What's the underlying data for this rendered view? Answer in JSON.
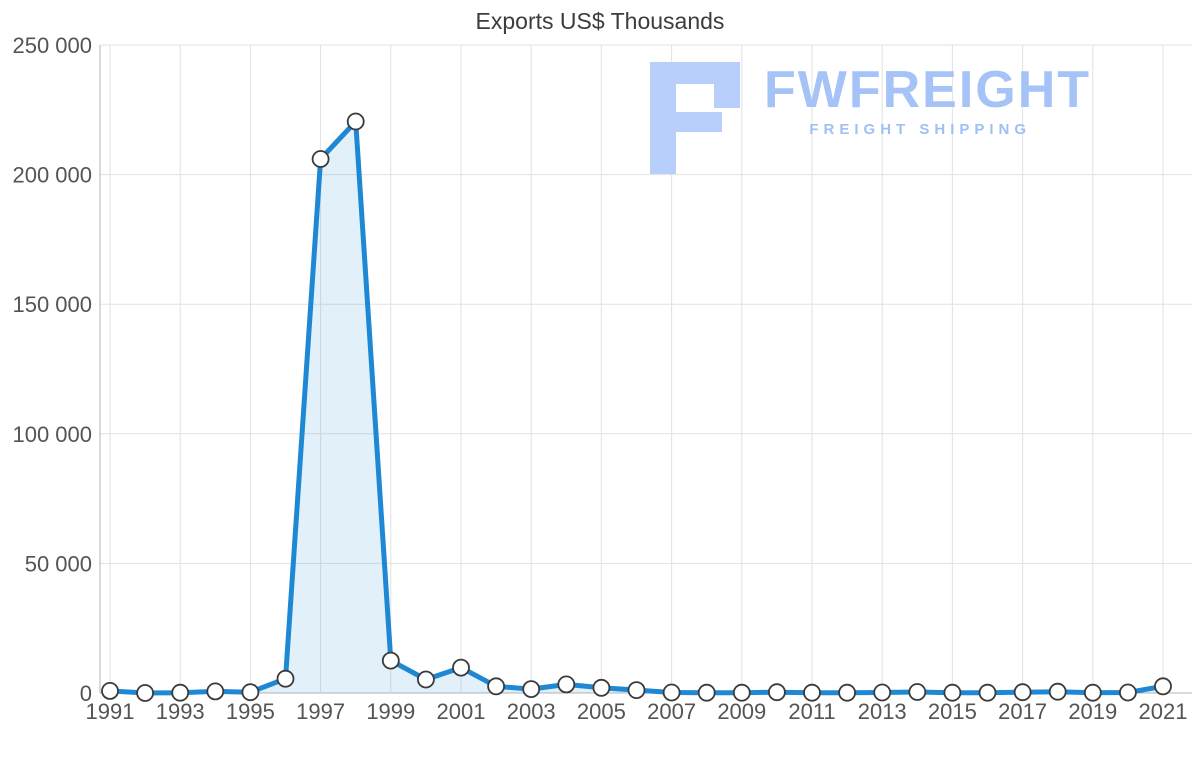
{
  "title": "Exports US$ Thousands",
  "watermark": {
    "brand": "FWFREIGHT",
    "tagline": "FREIGHT SHIPPING",
    "color": "#a6c3f7"
  },
  "chart_data": {
    "type": "area",
    "title": "Exports US$ Thousands",
    "x": [
      1991,
      1992,
      1993,
      1994,
      1995,
      1996,
      1997,
      1998,
      1999,
      2000,
      2001,
      2002,
      2003,
      2004,
      2005,
      2006,
      2007,
      2008,
      2009,
      2010,
      2011,
      2012,
      2013,
      2014,
      2015,
      2016,
      2017,
      2018,
      2019,
      2020,
      2021
    ],
    "values": [
      800,
      0,
      100,
      600,
      300,
      5500,
      206000,
      220500,
      12500,
      5200,
      9800,
      2600,
      1500,
      3300,
      2000,
      1100,
      200,
      100,
      100,
      300,
      100,
      100,
      200,
      400,
      100,
      100,
      300,
      500,
      100,
      200,
      2600
    ],
    "ylim": [
      0,
      250000
    ],
    "yticks": [
      0,
      50000,
      100000,
      150000,
      200000,
      250000
    ],
    "ytick_labels": [
      "0",
      "50 000",
      "100 000",
      "150 000",
      "200 000",
      "250 000"
    ],
    "xtick_labels": [
      "1991",
      "1993",
      "1995",
      "1997",
      "1999",
      "2001",
      "2003",
      "2005",
      "2007",
      "2009",
      "2011",
      "2013",
      "2015",
      "2017",
      "2019",
      "2021"
    ],
    "grid": true,
    "legend": "none",
    "line_color": "#1e88d4",
    "fill_color": "rgba(30,136,212,0.13)",
    "marker_fill": "#ffffff",
    "marker_stroke": "#3a3a3a",
    "grid_color": "#e2e2e2",
    "axis_color": "#b5b5b5"
  }
}
